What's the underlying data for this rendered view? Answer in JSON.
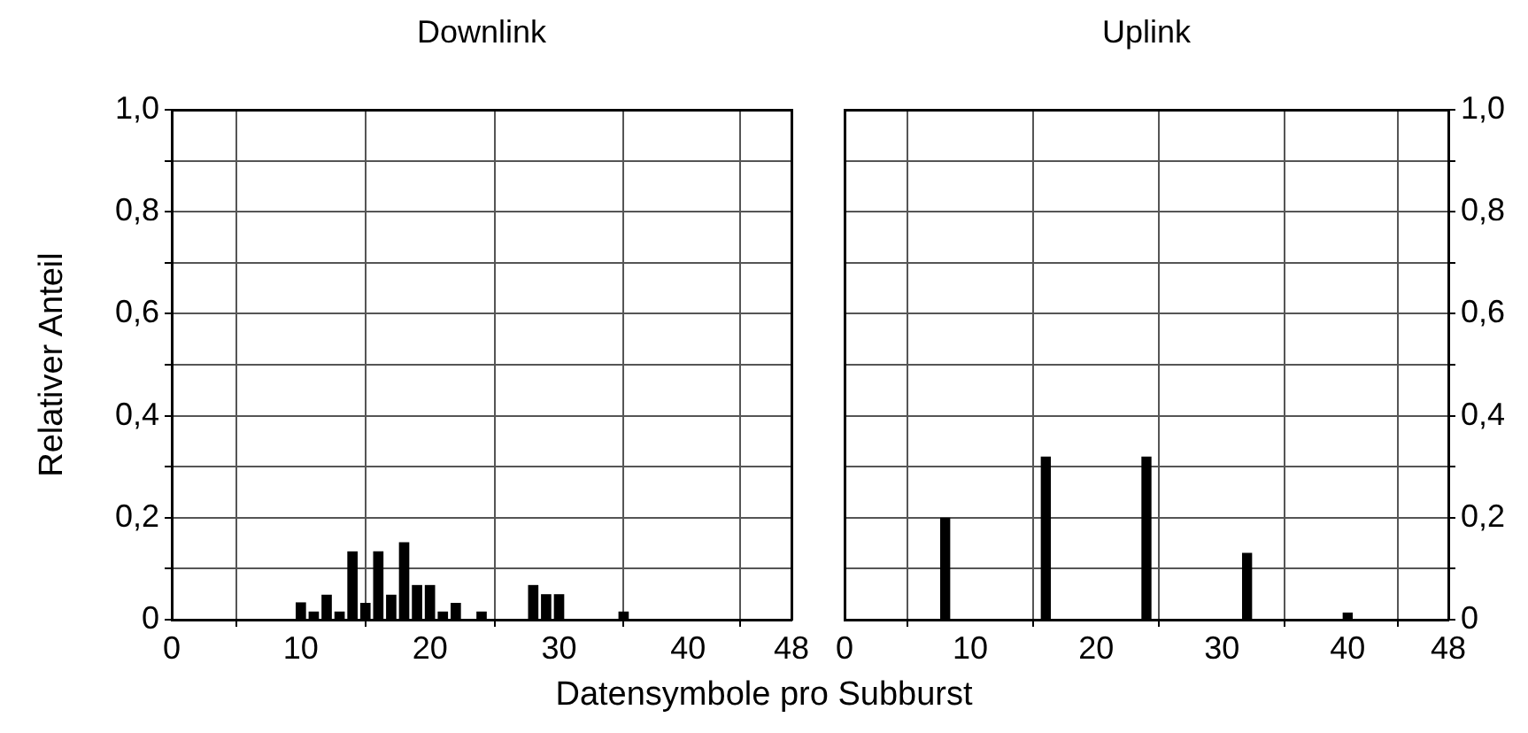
{
  "chart_data": [
    {
      "type": "bar",
      "title": "Downlink",
      "xlabel": "Datensymbole pro Subburst",
      "ylabel": "Relativer Anteil",
      "x": [
        10,
        11,
        12,
        13,
        14,
        15,
        16,
        17,
        18,
        19,
        20,
        21,
        22,
        24,
        28,
        29,
        30,
        35
      ],
      "values": [
        0.034,
        0.016,
        0.049,
        0.016,
        0.134,
        0.033,
        0.134,
        0.049,
        0.152,
        0.068,
        0.068,
        0.016,
        0.033,
        0.016,
        0.068,
        0.05,
        0.05,
        0.016
      ],
      "color": "#000000",
      "xlim": [
        0,
        48
      ],
      "xticks": [
        0,
        10,
        20,
        30,
        40,
        48
      ],
      "ylim": [
        0,
        1
      ],
      "yticks": [
        0,
        {
          "value": 0.1,
          "label": null
        },
        {
          "value": 0.2,
          "label": "0,2"
        },
        {
          "value": 0.3,
          "label": null
        },
        {
          "value": 0.4,
          "label": "0,4"
        },
        {
          "value": 0.5,
          "label": null
        },
        {
          "value": 0.6,
          "label": "0,6"
        },
        {
          "value": 0.7,
          "label": null
        },
        {
          "value": 0.8,
          "label": "0,8"
        },
        {
          "value": 0.9,
          "label": null
        },
        {
          "value": 1,
          "label": "1,0"
        }
      ],
      "grid": true,
      "legend": false
    },
    {
      "type": "bar",
      "title": "Uplink",
      "x": [
        8,
        16,
        24,
        32,
        40
      ],
      "values": [
        0.2,
        0.32,
        0.32,
        0.131,
        0.014
      ],
      "color": "#000000",
      "xlim": [
        0,
        48
      ],
      "xticks": [
        0,
        10,
        20,
        30,
        40,
        48
      ],
      "ylim": [
        0,
        1
      ],
      "yticks": [
        0,
        {
          "value": 0.1,
          "label": null
        },
        {
          "value": 0.2,
          "label": "0,2"
        },
        {
          "value": 0.3,
          "label": null
        },
        {
          "value": 0.4,
          "label": "0,4"
        },
        {
          "value": 0.5,
          "label": null
        },
        {
          "value": 0.6,
          "label": "0,6"
        },
        {
          "value": 0.7,
          "label": null
        },
        {
          "value": 0.8,
          "label": "0,8"
        },
        {
          "value": 0.9,
          "label": null
        },
        {
          "value": 1,
          "label": "1,0"
        }
      ],
      "grid": true,
      "legend": false
    }
  ]
}
